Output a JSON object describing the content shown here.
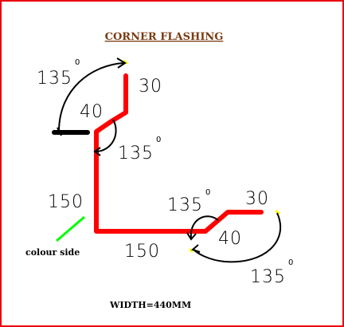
{
  "title": "CORNER  FLASHING",
  "angles": {
    "top_left": {
      "value": "135",
      "unit": "0"
    },
    "top_inner": {
      "value": "135",
      "unit": "0"
    },
    "bottom_inner": {
      "value": "135",
      "unit": "0"
    },
    "bottom_right": {
      "value": "135",
      "unit": "0"
    }
  },
  "dimensions": {
    "top_return": "30",
    "top_bend": "40",
    "vertical": "150",
    "horizontal": "150",
    "bottom_bend": "40",
    "bottom_return": "30"
  },
  "colour_side_label": "colour side",
  "width_label": "WIDTH=440MM",
  "colors": {
    "profile": "#ff0000",
    "hem": "#000000",
    "colour_side_marker": "#00ff00",
    "tip_marker": "#ffff00",
    "title": "#7b3a12",
    "border": "#e8000b"
  }
}
